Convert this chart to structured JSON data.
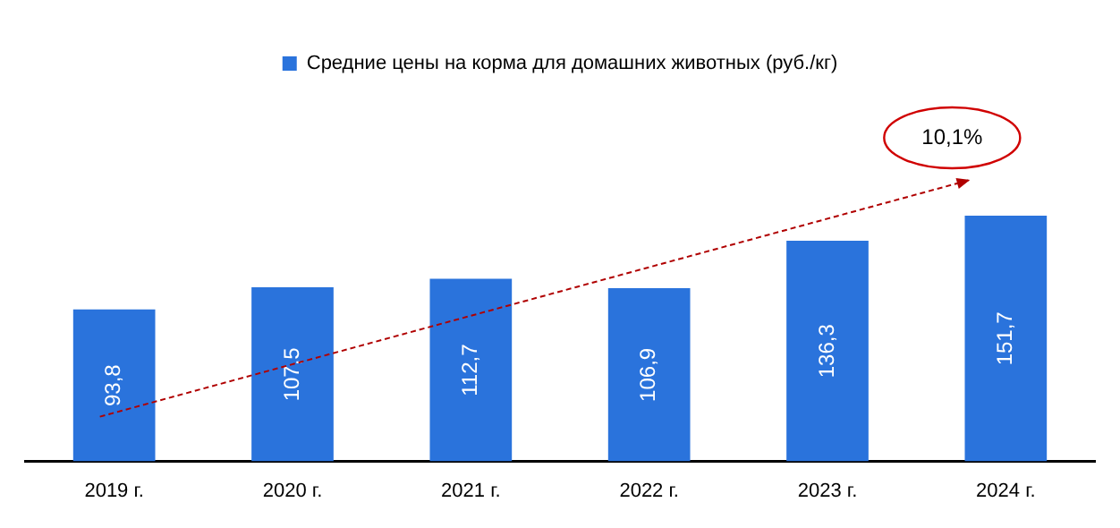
{
  "chart_data": {
    "type": "bar",
    "categories": [
      "2019 г.",
      "2020 г.",
      "2021 г.",
      "2022 г.",
      "2023 г.",
      "2024 г."
    ],
    "series": [
      {
        "name": "Средние цены на корма для домашних животных (руб./кг)",
        "color": "#2a73dc",
        "values": [
          93.8,
          107.5,
          112.7,
          106.9,
          136.3,
          151.7
        ],
        "value_labels": [
          "93,8",
          "107,5",
          "112,7",
          "106,9",
          "136,3",
          "151,7"
        ]
      }
    ],
    "legend": "top",
    "grid": false,
    "annotations": [
      "10,1%"
    ]
  }
}
